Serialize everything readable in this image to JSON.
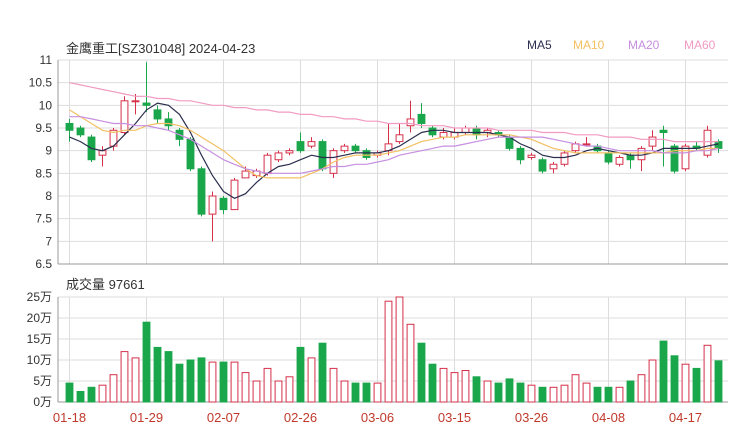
{
  "header": {
    "title": "金鹰重工[SZ301048] 2024-04-23",
    "legend": [
      {
        "label": "MA5",
        "color": "#2b2f4e"
      },
      {
        "label": "MA10",
        "color": "#f3c062"
      },
      {
        "label": "MA20",
        "color": "#c68ee0"
      },
      {
        "label": "MA60",
        "color": "#f29ac2"
      }
    ]
  },
  "volume_header": {
    "label": "成交量 97661"
  },
  "colors": {
    "up": "#d6304a",
    "down": "#1aa64b",
    "grid": "#dddddd"
  },
  "chart_data": [
    {
      "type": "candlestick",
      "title": "金鹰重工[SZ301048] 2024-04-23",
      "ylim": [
        6.5,
        11
      ],
      "yticks": [
        "11",
        "10.5",
        "10",
        "9.5",
        "9",
        "8.5",
        "8",
        "7.5",
        "7",
        "6.5"
      ],
      "ytick_values": [
        11,
        10.5,
        10,
        9.5,
        9,
        8.5,
        8,
        7.5,
        7,
        6.5
      ],
      "xtick_labels": [
        "01-18",
        "01-29",
        "02-07",
        "02-26",
        "03-06",
        "03-15",
        "03-26",
        "04-08",
        "04-17"
      ],
      "xtick_index": [
        0,
        7,
        14,
        21,
        28,
        35,
        42,
        49,
        56
      ],
      "candles": [
        [
          9.6,
          9.45,
          9.7,
          9.2
        ],
        [
          9.5,
          9.35,
          9.55,
          9.3
        ],
        [
          9.3,
          8.8,
          9.35,
          8.75
        ],
        [
          8.9,
          9.0,
          9.1,
          8.65
        ],
        [
          9.1,
          9.45,
          9.5,
          9.0
        ],
        [
          9.4,
          10.1,
          10.2,
          9.35
        ],
        [
          10.1,
          10.1,
          10.25,
          9.8
        ],
        [
          10.05,
          10.0,
          10.95,
          9.85
        ],
        [
          9.9,
          9.7,
          10.0,
          9.6
        ],
        [
          9.7,
          9.55,
          9.85,
          9.45
        ],
        [
          9.45,
          9.25,
          9.5,
          9.1
        ],
        [
          9.25,
          8.6,
          9.3,
          8.55
        ],
        [
          8.6,
          7.6,
          8.65,
          7.55
        ],
        [
          7.6,
          8.0,
          8.1,
          7.0
        ],
        [
          7.95,
          7.7,
          8.0,
          7.6
        ],
        [
          7.7,
          8.35,
          8.4,
          7.7
        ],
        [
          8.4,
          8.55,
          8.65,
          8.4
        ],
        [
          8.45,
          8.55,
          8.6,
          8.4
        ],
        [
          8.5,
          8.9,
          8.95,
          8.45
        ],
        [
          8.8,
          8.95,
          9.0,
          8.75
        ],
        [
          8.95,
          9.0,
          9.05,
          8.9
        ],
        [
          9.2,
          9.0,
          9.4,
          8.95
        ],
        [
          9.1,
          9.2,
          9.3,
          9.05
        ],
        [
          9.2,
          8.6,
          9.25,
          8.55
        ],
        [
          8.5,
          9.0,
          9.05,
          8.4
        ],
        [
          9.0,
          9.1,
          9.15,
          8.95
        ],
        [
          9.1,
          9.0,
          9.15,
          8.95
        ],
        [
          9.0,
          8.85,
          9.05,
          8.8
        ],
        [
          8.9,
          8.95,
          9.0,
          8.85
        ],
        [
          9.0,
          9.15,
          9.6,
          8.9
        ],
        [
          9.2,
          9.35,
          9.6,
          9.15
        ],
        [
          9.55,
          9.7,
          10.1,
          9.4
        ],
        [
          9.8,
          9.6,
          10.05,
          9.5
        ],
        [
          9.5,
          9.35,
          9.55,
          9.3
        ],
        [
          9.3,
          9.4,
          9.5,
          9.25
        ],
        [
          9.3,
          9.4,
          9.5,
          9.25
        ],
        [
          9.4,
          9.5,
          9.55,
          9.35
        ],
        [
          9.5,
          9.35,
          9.55,
          9.25
        ],
        [
          9.4,
          9.45,
          9.5,
          9.3
        ],
        [
          9.4,
          9.35,
          9.45,
          9.3
        ],
        [
          9.3,
          9.05,
          9.35,
          9.0
        ],
        [
          9.05,
          8.8,
          9.1,
          8.7
        ],
        [
          8.85,
          8.9,
          8.95,
          8.8
        ],
        [
          8.8,
          8.55,
          8.85,
          8.5
        ],
        [
          8.6,
          8.7,
          8.75,
          8.5
        ],
        [
          8.7,
          8.95,
          9.0,
          8.65
        ],
        [
          9.0,
          9.15,
          9.2,
          8.95
        ],
        [
          9.15,
          9.15,
          9.3,
          9.1
        ],
        [
          9.1,
          9.0,
          9.15,
          8.95
        ],
        [
          8.95,
          8.75,
          9.0,
          8.7
        ],
        [
          8.7,
          8.85,
          8.9,
          8.65
        ],
        [
          8.9,
          8.8,
          8.95,
          8.6
        ],
        [
          8.8,
          9.05,
          9.1,
          8.55
        ],
        [
          9.1,
          9.3,
          9.45,
          9.0
        ],
        [
          9.45,
          9.4,
          9.55,
          8.65
        ],
        [
          9.1,
          8.55,
          9.15,
          8.5
        ],
        [
          8.6,
          9.1,
          9.15,
          8.55
        ],
        [
          9.1,
          9.05,
          9.2,
          9.0
        ],
        [
          8.9,
          9.45,
          9.55,
          8.85
        ],
        [
          9.2,
          9.05,
          9.25,
          8.95
        ]
      ],
      "ma5": [
        9.3,
        9.2,
        9.05,
        9.0,
        9.1,
        9.35,
        9.6,
        9.9,
        10.05,
        10.0,
        9.8,
        9.4,
        8.9,
        8.45,
        8.1,
        7.95,
        8.05,
        8.3,
        8.5,
        8.65,
        8.7,
        8.8,
        8.9,
        8.85,
        8.85,
        8.9,
        8.95,
        8.95,
        8.95,
        9.0,
        9.1,
        9.25,
        9.4,
        9.45,
        9.45,
        9.4,
        9.4,
        9.4,
        9.4,
        9.35,
        9.3,
        9.15,
        9.05,
        8.9,
        8.85,
        8.85,
        8.9,
        9.0,
        9.05,
        9.0,
        8.95,
        8.9,
        8.9,
        8.95,
        9.05,
        9.05,
        9.05,
        9.05,
        9.1,
        9.15
      ],
      "ma10": [
        9.9,
        9.75,
        9.6,
        9.45,
        9.4,
        9.45,
        9.45,
        9.55,
        9.6,
        9.6,
        9.55,
        9.45,
        9.3,
        9.15,
        9.0,
        8.8,
        8.6,
        8.45,
        8.4,
        8.4,
        8.4,
        8.4,
        8.5,
        8.6,
        8.75,
        8.85,
        8.9,
        8.9,
        8.9,
        8.95,
        9.0,
        9.1,
        9.2,
        9.25,
        9.3,
        9.3,
        9.35,
        9.35,
        9.35,
        9.35,
        9.35,
        9.3,
        9.25,
        9.15,
        9.05,
        9.0,
        8.95,
        8.95,
        8.95,
        8.95,
        8.95,
        8.95,
        8.95,
        8.95,
        8.95,
        9.0,
        9.0,
        9.0,
        9.05,
        9.05
      ],
      "ma20": [
        9.75,
        9.75,
        9.7,
        9.65,
        9.6,
        9.6,
        9.55,
        9.55,
        9.5,
        9.45,
        9.35,
        9.25,
        9.1,
        8.95,
        8.8,
        8.7,
        8.6,
        8.55,
        8.5,
        8.5,
        8.5,
        8.5,
        8.55,
        8.6,
        8.65,
        8.65,
        8.7,
        8.7,
        8.75,
        8.8,
        8.9,
        8.95,
        9.0,
        9.05,
        9.1,
        9.1,
        9.15,
        9.2,
        9.25,
        9.3,
        9.3,
        9.3,
        9.3,
        9.3,
        9.25,
        9.2,
        9.15,
        9.1,
        9.1,
        9.05,
        9.0,
        9.0,
        9.0,
        9.0,
        8.95,
        8.95,
        8.95,
        9.0,
        9.0,
        9.05
      ],
      "ma60": [
        10.5,
        10.45,
        10.4,
        10.35,
        10.3,
        10.25,
        10.2,
        10.2,
        10.15,
        10.15,
        10.1,
        10.1,
        10.05,
        10.0,
        10.0,
        9.95,
        9.95,
        9.9,
        9.9,
        9.85,
        9.85,
        9.8,
        9.8,
        9.75,
        9.75,
        9.7,
        9.7,
        9.65,
        9.65,
        9.6,
        9.6,
        9.6,
        9.55,
        9.55,
        9.55,
        9.5,
        9.5,
        9.5,
        9.5,
        9.45,
        9.45,
        9.45,
        9.45,
        9.4,
        9.4,
        9.4,
        9.35,
        9.35,
        9.35,
        9.3,
        9.3,
        9.3,
        9.25,
        9.25,
        9.25,
        9.2,
        9.2,
        9.2,
        9.2,
        9.2
      ]
    },
    {
      "type": "bar",
      "title": "成交量 97661",
      "ylim": [
        0,
        25
      ],
      "yticks": [
        "25万",
        "20万",
        "15万",
        "10万",
        "5万",
        "0万"
      ],
      "ytick_values": [
        25,
        20,
        15,
        10,
        5,
        0
      ],
      "values": [
        4.5,
        2.5,
        3.5,
        4,
        6.5,
        12,
        10.5,
        19,
        13,
        12,
        9,
        10,
        10.5,
        9.5,
        9.5,
        9.5,
        7,
        5,
        8,
        5,
        6,
        13,
        10.5,
        14,
        8,
        5,
        4.5,
        4.5,
        4.5,
        24,
        25,
        18.5,
        14,
        9,
        8,
        7,
        7.5,
        6,
        5,
        4.5,
        5.5,
        4.5,
        4,
        3.5,
        3.5,
        4,
        6.5,
        4.5,
        3.5,
        3.5,
        3.5,
        5,
        6.5,
        10,
        14.5,
        11,
        9,
        8,
        13.5,
        9.8
      ]
    }
  ]
}
